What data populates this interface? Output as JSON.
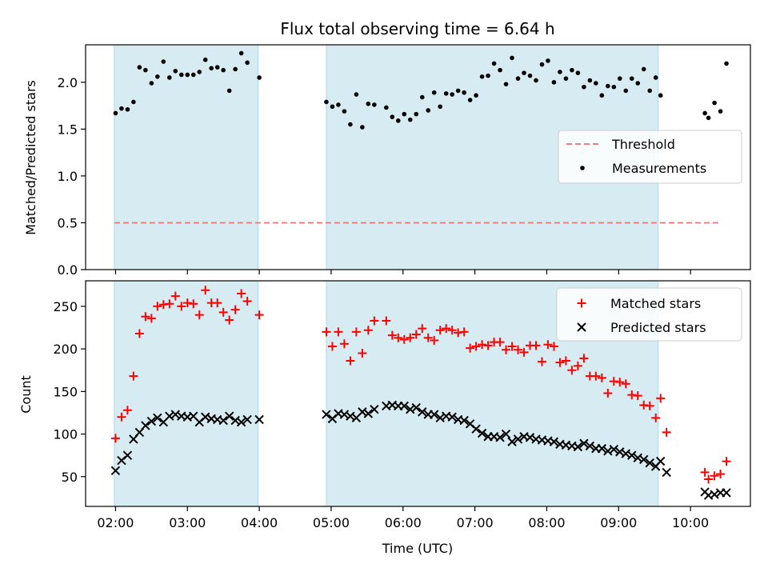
{
  "chart_data": [
    {
      "type": "scatter",
      "title": "Flux total observing time = 6.64 h",
      "xlabel": "",
      "ylabel": "Matched/Predicted stars",
      "xlim": [
        "01:35",
        "10:50"
      ],
      "ylim": [
        0,
        2.4
      ],
      "y_ticks": [
        0.0,
        0.5,
        1.0,
        1.5,
        2.0
      ],
      "grid": false,
      "legend_position": "center-right",
      "shaded_intervals": [
        [
          "01:59",
          "03:59"
        ],
        [
          "04:56",
          "09:33"
        ]
      ],
      "threshold": {
        "name": "Threshold",
        "value": 0.5,
        "x_range": [
          "01:59",
          "10:25"
        ],
        "color": "#f08080"
      },
      "series": [
        {
          "name": "Measurements",
          "marker": "dot",
          "color": "#000000",
          "points": [
            [
              "02:00",
              1.67
            ],
            [
              "02:05",
              1.72
            ],
            [
              "02:10",
              1.71
            ],
            [
              "02:15",
              1.79
            ],
            [
              "02:20",
              2.16
            ],
            [
              "02:25",
              2.13
            ],
            [
              "02:30",
              1.99
            ],
            [
              "02:35",
              2.06
            ],
            [
              "02:40",
              2.22
            ],
            [
              "02:45",
              2.05
            ],
            [
              "02:50",
              2.12
            ],
            [
              "02:55",
              2.08
            ],
            [
              "03:00",
              2.08
            ],
            [
              "03:05",
              2.08
            ],
            [
              "03:10",
              2.11
            ],
            [
              "03:15",
              2.24
            ],
            [
              "03:20",
              2.15
            ],
            [
              "03:25",
              2.16
            ],
            [
              "03:30",
              2.13
            ],
            [
              "03:35",
              1.91
            ],
            [
              "03:40",
              2.14
            ],
            [
              "03:45",
              2.31
            ],
            [
              "03:50",
              2.21
            ],
            [
              "04:00",
              2.05
            ],
            [
              "04:56",
              1.79
            ],
            [
              "05:01",
              1.74
            ],
            [
              "05:06",
              1.76
            ],
            [
              "05:11",
              1.69
            ],
            [
              "05:16",
              1.55
            ],
            [
              "05:21",
              1.87
            ],
            [
              "05:26",
              1.52
            ],
            [
              "05:31",
              1.77
            ],
            [
              "05:36",
              1.76
            ],
            [
              "05:46",
              1.73
            ],
            [
              "05:51",
              1.63
            ],
            [
              "05:56",
              1.59
            ],
            [
              "06:01",
              1.66
            ],
            [
              "06:06",
              1.6
            ],
            [
              "06:11",
              1.66
            ],
            [
              "06:16",
              1.84
            ],
            [
              "06:21",
              1.7
            ],
            [
              "06:26",
              1.89
            ],
            [
              "06:31",
              1.74
            ],
            [
              "06:36",
              1.88
            ],
            [
              "06:41",
              1.87
            ],
            [
              "06:46",
              1.91
            ],
            [
              "06:51",
              1.89
            ],
            [
              "06:56",
              1.81
            ],
            [
              "07:01",
              1.86
            ],
            [
              "07:06",
              2.06
            ],
            [
              "07:11",
              2.07
            ],
            [
              "07:16",
              2.2
            ],
            [
              "07:21",
              2.13
            ],
            [
              "07:26",
              1.98
            ],
            [
              "07:31",
              2.26
            ],
            [
              "07:36",
              2.04
            ],
            [
              "07:41",
              2.1
            ],
            [
              "07:46",
              2.07
            ],
            [
              "07:51",
              2.02
            ],
            [
              "07:56",
              2.19
            ],
            [
              "08:01",
              2.23
            ],
            [
              "08:06",
              2.0
            ],
            [
              "08:11",
              2.11
            ],
            [
              "08:16",
              2.04
            ],
            [
              "08:21",
              2.13
            ],
            [
              "08:26",
              2.1
            ],
            [
              "08:31",
              1.95
            ],
            [
              "08:36",
              2.02
            ],
            [
              "08:41",
              1.99
            ],
            [
              "08:46",
              1.86
            ],
            [
              "08:51",
              1.96
            ],
            [
              "08:56",
              1.95
            ],
            [
              "09:01",
              2.04
            ],
            [
              "09:06",
              1.91
            ],
            [
              "09:11",
              2.04
            ],
            [
              "09:16",
              1.99
            ],
            [
              "09:21",
              2.14
            ],
            [
              "09:26",
              1.91
            ],
            [
              "09:31",
              2.05
            ],
            [
              "09:35",
              1.86
            ],
            [
              "10:12",
              1.67
            ],
            [
              "10:15",
              1.62
            ],
            [
              "10:20",
              1.78
            ],
            [
              "10:25",
              1.69
            ],
            [
              "10:30",
              2.2
            ]
          ]
        }
      ]
    },
    {
      "type": "scatter",
      "title": "",
      "xlabel": "Time (UTC)",
      "ylabel": "Count",
      "xlim": [
        "01:35",
        "10:50"
      ],
      "ylim": [
        15,
        280
      ],
      "y_ticks": [
        50,
        100,
        150,
        200,
        250
      ],
      "x_ticks": [
        "02:00",
        "03:00",
        "04:00",
        "05:00",
        "06:00",
        "07:00",
        "08:00",
        "09:00",
        "10:00"
      ],
      "grid": false,
      "legend_position": "top-right",
      "shaded_intervals": [
        [
          "01:59",
          "03:59"
        ],
        [
          "04:56",
          "09:33"
        ]
      ],
      "series": [
        {
          "name": "Matched stars",
          "marker": "plus",
          "color": "#ff0000",
          "points": [
            [
              "02:00",
              95
            ],
            [
              "02:05",
              120
            ],
            [
              "02:10",
              128
            ],
            [
              "02:15",
              168
            ],
            [
              "02:20",
              218
            ],
            [
              "02:25",
              238
            ],
            [
              "02:30",
              236
            ],
            [
              "02:35",
              250
            ],
            [
              "02:40",
              252
            ],
            [
              "02:45",
              253
            ],
            [
              "02:50",
              262
            ],
            [
              "02:55",
              250
            ],
            [
              "03:00",
              254
            ],
            [
              "03:05",
              253
            ],
            [
              "03:10",
              240
            ],
            [
              "03:15",
              269
            ],
            [
              "03:20",
              254
            ],
            [
              "03:25",
              254
            ],
            [
              "03:30",
              243
            ],
            [
              "03:35",
              234
            ],
            [
              "03:40",
              246
            ],
            [
              "03:45",
              265
            ],
            [
              "03:50",
              256
            ],
            [
              "04:00",
              240
            ],
            [
              "04:56",
              220
            ],
            [
              "05:01",
              203
            ],
            [
              "05:06",
              220
            ],
            [
              "05:11",
              206
            ],
            [
              "05:16",
              186
            ],
            [
              "05:21",
              220
            ],
            [
              "05:26",
              195
            ],
            [
              "05:31",
              222
            ],
            [
              "05:36",
              233
            ],
            [
              "05:46",
              233
            ],
            [
              "05:51",
              216
            ],
            [
              "05:56",
              213
            ],
            [
              "06:01",
              211
            ],
            [
              "06:06",
              213
            ],
            [
              "06:11",
              217
            ],
            [
              "06:16",
              224
            ],
            [
              "06:21",
              213
            ],
            [
              "06:26",
              210
            ],
            [
              "06:31",
              222
            ],
            [
              "06:36",
              224
            ],
            [
              "06:41",
              222
            ],
            [
              "06:46",
              219
            ],
            [
              "06:51",
              220
            ],
            [
              "06:56",
              201
            ],
            [
              "07:01",
              203
            ],
            [
              "07:06",
              205
            ],
            [
              "07:11",
              204
            ],
            [
              "07:16",
              208
            ],
            [
              "07:21",
              208
            ],
            [
              "07:26",
              199
            ],
            [
              "07:31",
              203
            ],
            [
              "07:36",
              199
            ],
            [
              "07:41",
              196
            ],
            [
              "07:46",
              204
            ],
            [
              "07:51",
              204
            ],
            [
              "07:56",
              185
            ],
            [
              "08:01",
              205
            ],
            [
              "08:06",
              203
            ],
            [
              "08:11",
              184
            ],
            [
              "08:16",
              186
            ],
            [
              "08:21",
              175
            ],
            [
              "08:26",
              180
            ],
            [
              "08:31",
              189
            ],
            [
              "08:36",
              168
            ],
            [
              "08:41",
              168
            ],
            [
              "08:46",
              166
            ],
            [
              "08:51",
              148
            ],
            [
              "08:56",
              162
            ],
            [
              "09:01",
              161
            ],
            [
              "09:06",
              159
            ],
            [
              "09:11",
              146
            ],
            [
              "09:16",
              145
            ],
            [
              "09:21",
              134
            ],
            [
              "09:26",
              133
            ],
            [
              "09:31",
              119
            ],
            [
              "09:35",
              142
            ],
            [
              "09:40",
              102
            ],
            [
              "10:12",
              55
            ],
            [
              "10:15",
              47
            ],
            [
              "10:20",
              51
            ],
            [
              "10:25",
              53
            ],
            [
              "10:30",
              68
            ]
          ]
        },
        {
          "name": "Predicted stars",
          "marker": "x",
          "color": "#000000",
          "points": [
            [
              "02:00",
              57
            ],
            [
              "02:05",
              69
            ],
            [
              "02:10",
              75
            ],
            [
              "02:15",
              94
            ],
            [
              "02:20",
              102
            ],
            [
              "02:25",
              110
            ],
            [
              "02:30",
              115
            ],
            [
              "02:35",
              119
            ],
            [
              "02:40",
              114
            ],
            [
              "02:45",
              121
            ],
            [
              "02:50",
              123
            ],
            [
              "02:55",
              121
            ],
            [
              "03:00",
              120
            ],
            [
              "03:05",
              121
            ],
            [
              "03:10",
              114
            ],
            [
              "03:15",
              120
            ],
            [
              "03:20",
              118
            ],
            [
              "03:25",
              117
            ],
            [
              "03:30",
              116
            ],
            [
              "03:35",
              121
            ],
            [
              "03:40",
              116
            ],
            [
              "03:45",
              114
            ],
            [
              "03:50",
              117
            ],
            [
              "04:00",
              117
            ],
            [
              "04:56",
              123
            ],
            [
              "05:01",
              118
            ],
            [
              "05:06",
              124
            ],
            [
              "05:11",
              123
            ],
            [
              "05:16",
              121
            ],
            [
              "05:21",
              119
            ],
            [
              "05:26",
              126
            ],
            [
              "05:31",
              124
            ],
            [
              "05:36",
              129
            ],
            [
              "05:46",
              133
            ],
            [
              "05:51",
              134
            ],
            [
              "05:56",
              133
            ],
            [
              "06:01",
              133
            ],
            [
              "06:06",
              129
            ],
            [
              "06:11",
              131
            ],
            [
              "06:16",
              126
            ],
            [
              "06:21",
              123
            ],
            [
              "06:26",
              123
            ],
            [
              "06:31",
              119
            ],
            [
              "06:36",
              121
            ],
            [
              "06:41",
              120
            ],
            [
              "06:46",
              117
            ],
            [
              "06:51",
              116
            ],
            [
              "06:56",
              112
            ],
            [
              "07:01",
              106
            ],
            [
              "07:06",
              101
            ],
            [
              "07:11",
              97
            ],
            [
              "07:16",
              97
            ],
            [
              "07:21",
              96
            ],
            [
              "07:26",
              100
            ],
            [
              "07:31",
              91
            ],
            [
              "07:36",
              94
            ],
            [
              "07:41",
              97
            ],
            [
              "07:46",
              96
            ],
            [
              "07:51",
              94
            ],
            [
              "07:56",
              93
            ],
            [
              "08:01",
              92
            ],
            [
              "08:06",
              91
            ],
            [
              "08:11",
              88
            ],
            [
              "08:16",
              87
            ],
            [
              "08:21",
              86
            ],
            [
              "08:26",
              85
            ],
            [
              "08:31",
              89
            ],
            [
              "08:36",
              86
            ],
            [
              "08:41",
              83
            ],
            [
              "08:46",
              83
            ],
            [
              "08:51",
              80
            ],
            [
              "08:56",
              82
            ],
            [
              "09:01",
              79
            ],
            [
              "09:06",
              77
            ],
            [
              "09:11",
              75
            ],
            [
              "09:16",
              72
            ],
            [
              "09:21",
              70
            ],
            [
              "09:26",
              66
            ],
            [
              "09:31",
              62
            ],
            [
              "09:35",
              68
            ],
            [
              "09:40",
              55
            ],
            [
              "10:12",
              32
            ],
            [
              "10:15",
              28
            ],
            [
              "10:20",
              29
            ],
            [
              "10:25",
              31
            ],
            [
              "10:30",
              31
            ]
          ]
        }
      ]
    }
  ]
}
